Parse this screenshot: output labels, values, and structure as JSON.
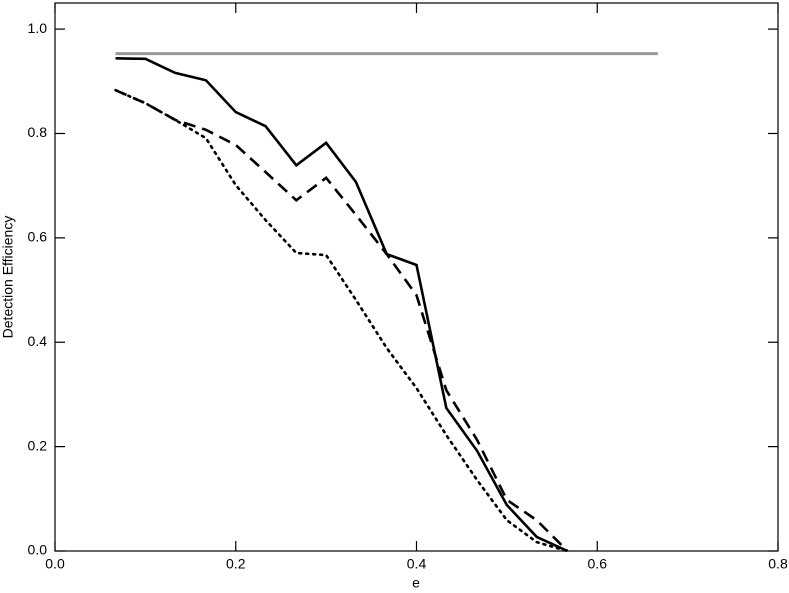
{
  "chart_data": {
    "type": "line",
    "xlabel": "e",
    "ylabel": "Detection Efficiency",
    "xlim": [
      0,
      0.8
    ],
    "xticks": [
      {
        "value": 0,
        "label": "0.0"
      },
      0.2,
      0.4,
      0.6,
      0.8
    ],
    "ylim": [
      0,
      1.05
    ],
    "yticks": [
      {
        "value": 0,
        "label": "0.0"
      },
      0.2,
      0.4,
      0.6,
      0.8,
      {
        "value": 1,
        "label": "1.0"
      }
    ],
    "grid": false,
    "series": [
      {
        "color": "#999999",
        "dash": "solid",
        "x": [
          0.067,
          0.667
        ],
        "values": [
          0.953,
          0.953
        ]
      },
      {
        "color": "#000000",
        "dash": "solid",
        "x": [
          0.067,
          0.1,
          0.133,
          0.167,
          0.2,
          0.233,
          0.267,
          0.3,
          0.333,
          0.367,
          0.4,
          0.433,
          0.467,
          0.5,
          0.533,
          0.567
        ],
        "values": [
          0.944,
          0.943,
          0.916,
          0.902,
          0.841,
          0.814,
          0.739,
          0.782,
          0.707,
          0.569,
          0.548,
          0.274,
          0.192,
          0.088,
          0.027,
          0
        ]
      },
      {
        "color": "#000000",
        "dash": "dashed",
        "x": [
          0.067,
          0.1,
          0.133,
          0.167,
          0.2,
          0.233,
          0.267,
          0.3,
          0.333,
          0.367,
          0.4,
          0.433,
          0.467,
          0.5,
          0.533,
          0.567
        ],
        "values": [
          0.883,
          0.858,
          0.826,
          0.807,
          0.778,
          0.726,
          0.672,
          0.715,
          0.644,
          0.569,
          0.49,
          0.308,
          0.213,
          0.098,
          0.059,
          0
        ]
      },
      {
        "color": "#000000",
        "dash": "dotted",
        "x": [
          0.067,
          0.1,
          0.133,
          0.167,
          0.2,
          0.233,
          0.267,
          0.3,
          0.333,
          0.367,
          0.4,
          0.433,
          0.467,
          0.5,
          0.533,
          0.567
        ],
        "values": [
          0.883,
          0.858,
          0.826,
          0.791,
          0.701,
          0.634,
          0.571,
          0.567,
          0.481,
          0.389,
          0.312,
          0.222,
          0.136,
          0.059,
          0.017,
          0
        ]
      }
    ]
  }
}
